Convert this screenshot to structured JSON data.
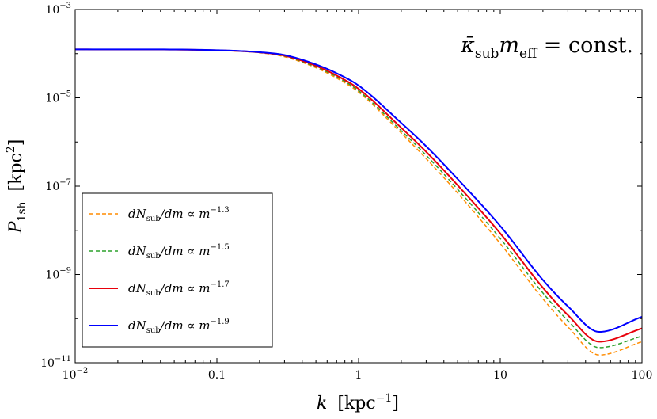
{
  "chart_data": {
    "type": "line",
    "xscale": "log",
    "yscale": "log",
    "xlim": [
      0.01,
      100
    ],
    "ylim": [
      1e-11,
      0.001
    ],
    "xlabel": {
      "main": "k",
      "unit": "[kpc",
      "sup": "−1",
      "close": "]"
    },
    "ylabel": {
      "main": "P",
      "sub": "1sh",
      "unit": "[kpc",
      "sup": "2",
      "close": "]"
    },
    "x_ticks": [
      {
        "value": 0.01,
        "base": "10",
        "exp": "−2"
      },
      {
        "value": 0.1,
        "text": "0.1"
      },
      {
        "value": 1,
        "text": "1"
      },
      {
        "value": 10,
        "text": "10"
      },
      {
        "value": 100,
        "text": "100"
      }
    ],
    "y_ticks": [
      {
        "value": 1e-11,
        "base": "10",
        "exp": "−11"
      },
      {
        "value": 1e-09,
        "base": "10",
        "exp": "−9"
      },
      {
        "value": 1e-07,
        "base": "10",
        "exp": "−7"
      },
      {
        "value": 1e-05,
        "base": "10",
        "exp": "−5"
      },
      {
        "value": 0.001,
        "base": "10",
        "exp": "−3"
      }
    ],
    "annotation": {
      "kappa": "κ̄",
      "sub": "sub",
      "m": "m",
      "msub": "eff",
      "rest": " = const."
    },
    "legend_position": "bottom-left",
    "series": [
      {
        "label": {
          "lhs": "dN",
          "lhs_sub": "sub",
          "mid": "/dm ∝ m",
          "exp": "−1.3"
        },
        "color": "#ff8c00",
        "dash": "dashed",
        "x": [
          0.01,
          0.1,
          0.2,
          0.3,
          0.5,
          0.7,
          1,
          2,
          3,
          5,
          10,
          20,
          30,
          50,
          100
        ],
        "y": [
          0.000125,
          0.000119,
          0.000105,
          8.5e-05,
          4.8e-05,
          2.8e-05,
          1.35e-05,
          1.6e-06,
          4.2e-07,
          7e-08,
          5e-09,
          2.8e-10,
          6.5e-11,
          1.5e-11,
          3e-11
        ]
      },
      {
        "label": {
          "lhs": "dN",
          "lhs_sub": "sub",
          "mid": "/dm ∝ m",
          "exp": "−1.5"
        },
        "color": "#2ca02c",
        "dash": "dashed",
        "x": [
          0.01,
          0.1,
          0.2,
          0.3,
          0.5,
          0.7,
          1,
          2,
          3,
          5,
          10,
          20,
          30,
          50,
          100
        ],
        "y": [
          0.000125,
          0.000119,
          0.000106,
          8.8e-05,
          5e-05,
          3e-05,
          1.45e-05,
          1.8e-06,
          5e-07,
          8.5e-08,
          6.5e-09,
          3.8e-10,
          9e-11,
          2.2e-11,
          4e-11
        ]
      },
      {
        "label": {
          "lhs": "dN",
          "lhs_sub": "sub",
          "mid": "/dm ∝ m",
          "exp": "−1.7"
        },
        "color": "#e8000b",
        "dash": "solid",
        "x": [
          0.01,
          0.1,
          0.2,
          0.3,
          0.5,
          0.7,
          1,
          2,
          3,
          5,
          10,
          20,
          30,
          50,
          100
        ],
        "y": [
          0.000125,
          0.000119,
          0.000107,
          9e-05,
          5.3e-05,
          3.2e-05,
          1.6e-05,
          2.1e-06,
          6e-07,
          1.05e-07,
          8.5e-09,
          5e-10,
          1.2e-10,
          3e-11,
          6e-11
        ]
      },
      {
        "label": {
          "lhs": "dN",
          "lhs_sub": "sub",
          "mid": "/dm ∝ m",
          "exp": "−1.9"
        },
        "color": "#0000ff",
        "dash": "solid",
        "x": [
          0.01,
          0.1,
          0.2,
          0.3,
          0.5,
          0.7,
          1,
          2,
          3,
          5,
          10,
          20,
          30,
          50,
          100
        ],
        "y": [
          0.000125,
          0.00012,
          0.000108,
          9.3e-05,
          5.7e-05,
          3.6e-05,
          1.9e-05,
          2.7e-06,
          8e-07,
          1.45e-07,
          1.25e-08,
          7.5e-10,
          1.9e-10,
          5e-11,
          1.1e-10
        ]
      }
    ]
  }
}
